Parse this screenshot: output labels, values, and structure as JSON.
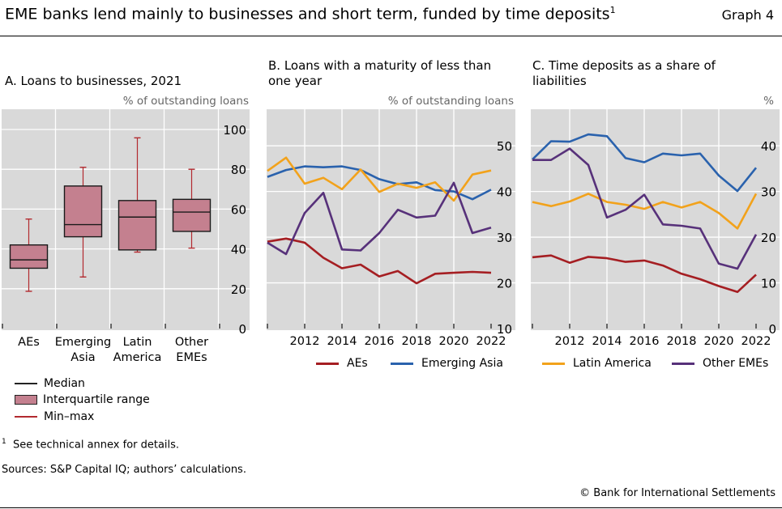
{
  "header": {
    "title": "EME banks lend mainly to businesses and short term, funded by time deposits",
    "title_footnote": "1",
    "graph_number": "Graph 4"
  },
  "footer": {
    "footnote_mark": "1",
    "footnote": "See technical annex for details.",
    "sources": "Sources: S&P Capital IQ; authors’ calculations.",
    "copyright": "© Bank for International Settlements"
  },
  "colors": {
    "background": "#d9d9d9",
    "grid": "#ffffff",
    "box_fill": "#c4808f",
    "whisker": "#b22a2f",
    "AEs": "#a51e22",
    "Emerging Asia": "#2a62ad",
    "Latin America": "#f2a21b",
    "Other EMEs": "#57317a"
  },
  "chart_data": [
    {
      "type": "box",
      "title": "A. Loans to businesses, 2021",
      "unit": "% of outstanding loans",
      "ylim": [
        0,
        100
      ],
      "yticks": [
        "0",
        "20",
        "40",
        "60",
        "80",
        "100"
      ],
      "grid": true,
      "categories": [
        "AEs",
        "Emerging Asia",
        "Latin America",
        "Other EMEs"
      ],
      "category_lines": [
        [
          "AEs"
        ],
        [
          "Emerging",
          "Asia"
        ],
        [
          "Latin",
          "America"
        ],
        [
          "Other",
          "EMEs"
        ]
      ],
      "boxes": [
        {
          "min": 18.7,
          "q1": 30.3,
          "median": 34.5,
          "q3": 42,
          "max": 55
        },
        {
          "min": 25.9,
          "q1": 46.1,
          "median": 52.2,
          "q3": 71.6,
          "max": 81
        },
        {
          "min": 38.4,
          "q1": 39.5,
          "median": 56,
          "q3": 64.3,
          "max": 95.8
        },
        {
          "min": 40.4,
          "q1": 48.8,
          "median": 58.5,
          "q3": 64.9,
          "max": 80
        }
      ],
      "legend": [
        "Median",
        "Interquartile range",
        "Min–max"
      ]
    },
    {
      "type": "line",
      "title": "B. Loans with a maturity of less than one year",
      "unit": "% of outstanding loans",
      "ylim": [
        10,
        58
      ],
      "yticks": [
        "10",
        "20",
        "30",
        "40",
        "50"
      ],
      "xticks": [
        "2012",
        "2014",
        "2016",
        "2018",
        "2020",
        "2022"
      ],
      "grid": true,
      "x": [
        2010,
        2011,
        2012,
        2013,
        2014,
        2015,
        2016,
        2017,
        2018,
        2019,
        2020,
        2021,
        2022
      ],
      "series": [
        {
          "name": "AEs",
          "values": [
            29,
            29.7,
            28.8,
            25.5,
            23.2,
            24,
            21.4,
            22.6,
            19.9,
            22,
            22.2,
            22.4,
            22.2
          ]
        },
        {
          "name": "Emerging Asia",
          "values": [
            43.2,
            44.7,
            45.5,
            45.3,
            45.5,
            44.7,
            42.7,
            41.6,
            42,
            40.3,
            40,
            38.3,
            40.4
          ]
        },
        {
          "name": "Latin America",
          "values": [
            44.5,
            47.4,
            41.7,
            43,
            40.5,
            44.8,
            39.9,
            41.7,
            40.8,
            42,
            38,
            43.7,
            44.6
          ]
        },
        {
          "name": "Other EMEs",
          "values": [
            28.8,
            26.3,
            35.3,
            39.7,
            27.3,
            27.1,
            30.9,
            36,
            34.3,
            34.7,
            41.9,
            30.9,
            32.1
          ]
        }
      ],
      "legend": [
        "AEs",
        "Emerging Asia"
      ]
    },
    {
      "type": "line",
      "title": "C. Time deposits as a share of liabilities",
      "unit": "%",
      "ylim": [
        0,
        48
      ],
      "yticks": [
        "0",
        "10",
        "20",
        "30",
        "40"
      ],
      "xticks": [
        "2012",
        "2014",
        "2016",
        "2018",
        "2020",
        "2022"
      ],
      "grid": true,
      "x": [
        2010,
        2011,
        2012,
        2013,
        2014,
        2015,
        2016,
        2017,
        2018,
        2019,
        2020,
        2021,
        2022
      ],
      "series": [
        {
          "name": "AEs",
          "values": [
            15.6,
            16,
            14.4,
            15.7,
            15.4,
            14.6,
            14.9,
            13.8,
            12,
            10.8,
            9.3,
            8,
            11.8
          ]
        },
        {
          "name": "Emerging Asia",
          "values": [
            37,
            41,
            40.9,
            42.5,
            42.1,
            37.3,
            36.4,
            38.3,
            37.9,
            38.3,
            33.5,
            30.1,
            35.2
          ]
        },
        {
          "name": "Latin America",
          "values": [
            27.7,
            26.8,
            27.8,
            29.5,
            27.7,
            27.1,
            26.2,
            27.7,
            26.5,
            27.7,
            25.3,
            21.9,
            29.5
          ]
        },
        {
          "name": "Other EMEs",
          "values": [
            36.9,
            36.9,
            39.4,
            35.8,
            24.3,
            26,
            29.3,
            22.8,
            22.5,
            21.9,
            14.2,
            13.1,
            20.6
          ]
        }
      ],
      "legend": [
        "Latin America",
        "Other EMEs"
      ]
    }
  ]
}
